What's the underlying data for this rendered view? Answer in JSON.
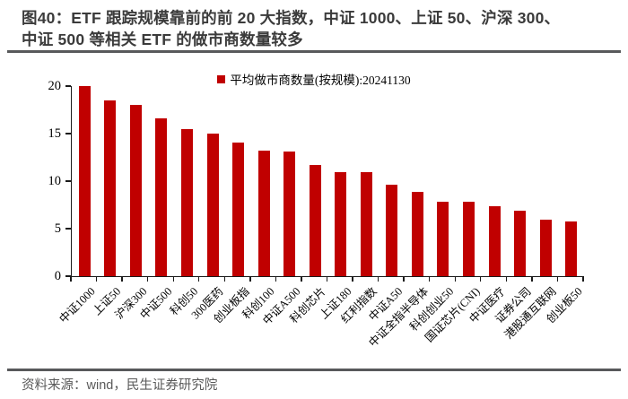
{
  "figure": {
    "title_lines": [
      "图40：ETF 跟踪规模靠前的前 20 大指数，中证 1000、上证 50、沪深 300、",
      "中证 500 等相关 ETF 的做市商数量较多"
    ],
    "source": "资料来源：wind，民生证券研究院"
  },
  "colors": {
    "bar": "#C00000",
    "title_text": "#3B3B3B",
    "rule": "#58595B",
    "source_text": "#595959",
    "axis": "#1A1A1A"
  },
  "chart_data": {
    "type": "bar",
    "legend": "平均做市商数量(按规模):20241130",
    "legend_position": "top-center",
    "categories": [
      "中证1000",
      "上证50",
      "沪深300",
      "中证500",
      "科创50",
      "300医药",
      "创业板指",
      "科创100",
      "中证A500",
      "科创芯片",
      "上证180",
      "红利指数",
      "中证A50",
      "中证全指半导体",
      "科创创业50",
      "国证芯片(CNI)",
      "中证医疗",
      "证券公司",
      "港股通互联网",
      "创业板50"
    ],
    "values": [
      20,
      18.5,
      18,
      16.6,
      15.5,
      15,
      14.1,
      13.2,
      13.1,
      11.7,
      10.9,
      10.9,
      9.6,
      8.9,
      7.8,
      7.8,
      7.4,
      6.9,
      5.9,
      5.8
    ],
    "ylim": [
      0,
      20
    ],
    "yticks": [
      0,
      5,
      10,
      15,
      20
    ],
    "grid": false,
    "bar_color": "#C00000",
    "xlabel": "",
    "ylabel": ""
  }
}
